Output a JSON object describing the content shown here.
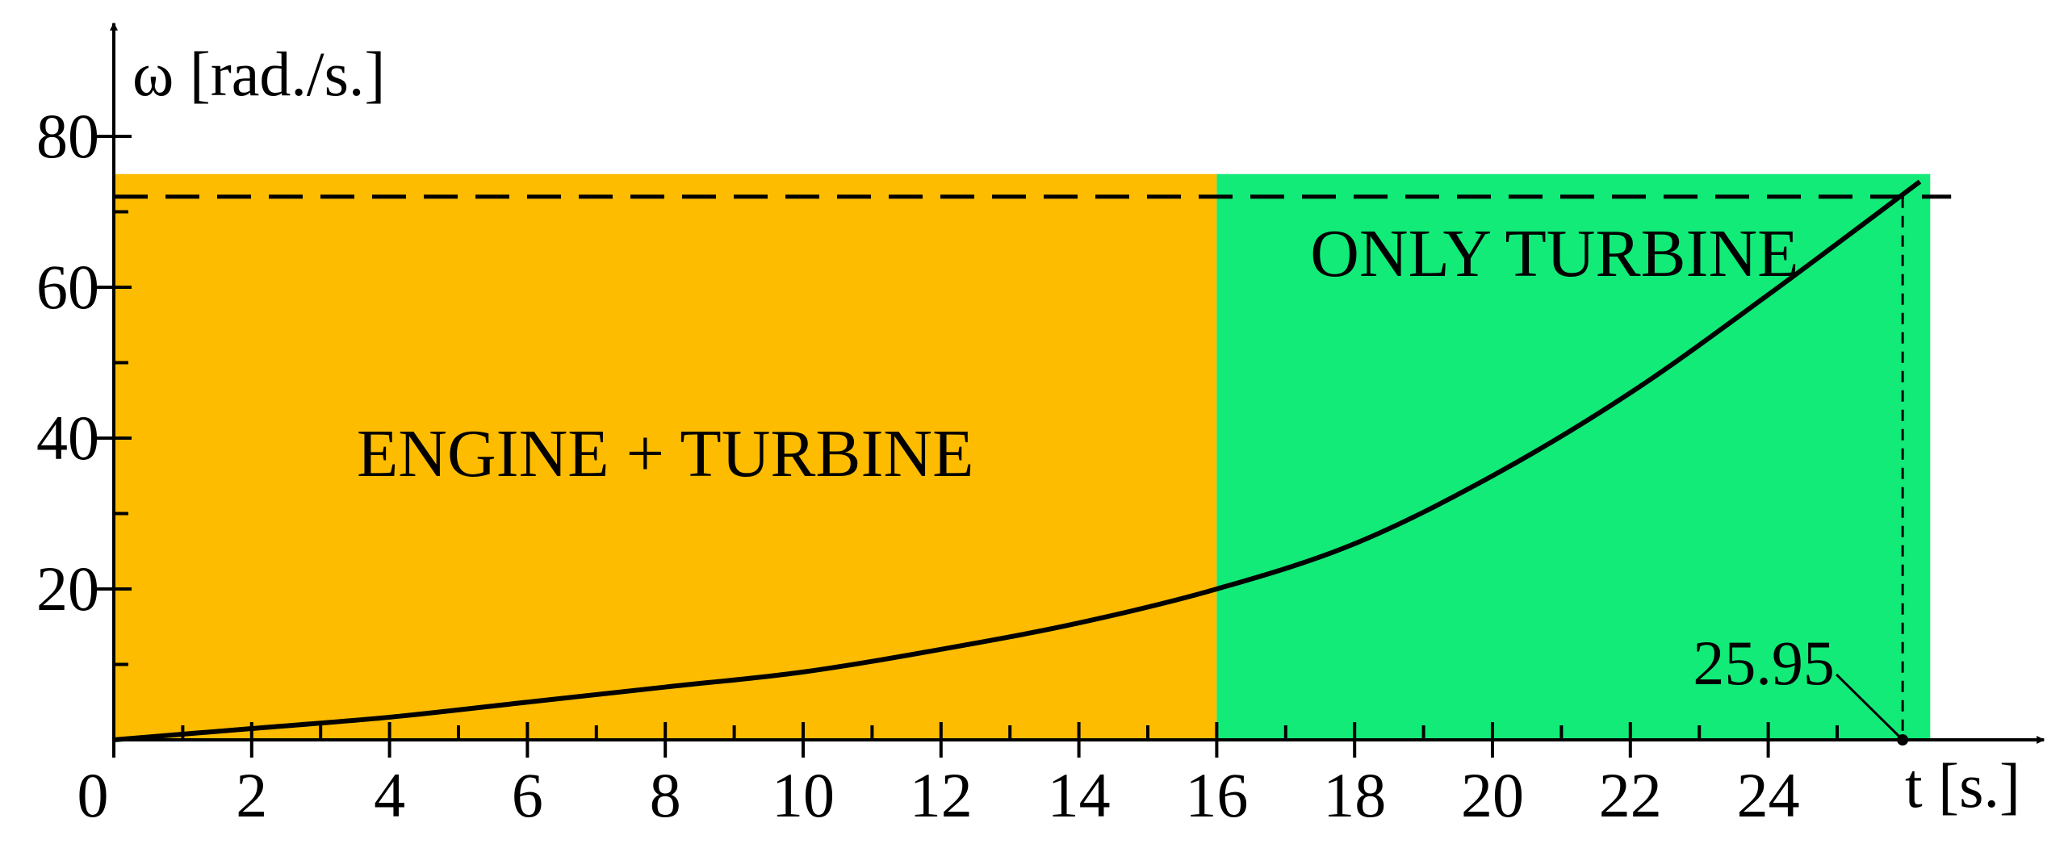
{
  "chart_data": {
    "type": "line",
    "y_label": "ω [rad./s.]",
    "x_label": "t [s.]",
    "x": [
      0,
      2,
      4,
      6,
      8,
      10,
      12,
      14,
      16,
      18,
      20,
      22,
      24,
      26.2
    ],
    "values": [
      0,
      1.5,
      3,
      5,
      7,
      9,
      12,
      15.5,
      20,
      26,
      35,
      46,
      59,
      74
    ],
    "color": "#000000",
    "xlim": [
      0,
      28
    ],
    "ylim": [
      0,
      95
    ],
    "xticks": [
      0,
      2,
      4,
      6,
      8,
      10,
      12,
      14,
      16,
      18,
      20,
      22,
      24
    ],
    "xminor": [
      1,
      3,
      5,
      7,
      9,
      11,
      13,
      15,
      17,
      19,
      21,
      23,
      25
    ],
    "yticks": [
      20,
      40,
      60,
      80
    ],
    "yminor": [
      10,
      30,
      50,
      70
    ],
    "regions": [
      {
        "label": "ENGINE + TURBINE",
        "from": 0,
        "to": 16,
        "top": 75,
        "color": "#fdbc00"
      },
      {
        "label": "ONLY TURBINE",
        "from": 16,
        "to": 26.35,
        "top": 75,
        "color": "#12eb78"
      }
    ],
    "reference_level": 72,
    "marker": 25.95
  }
}
